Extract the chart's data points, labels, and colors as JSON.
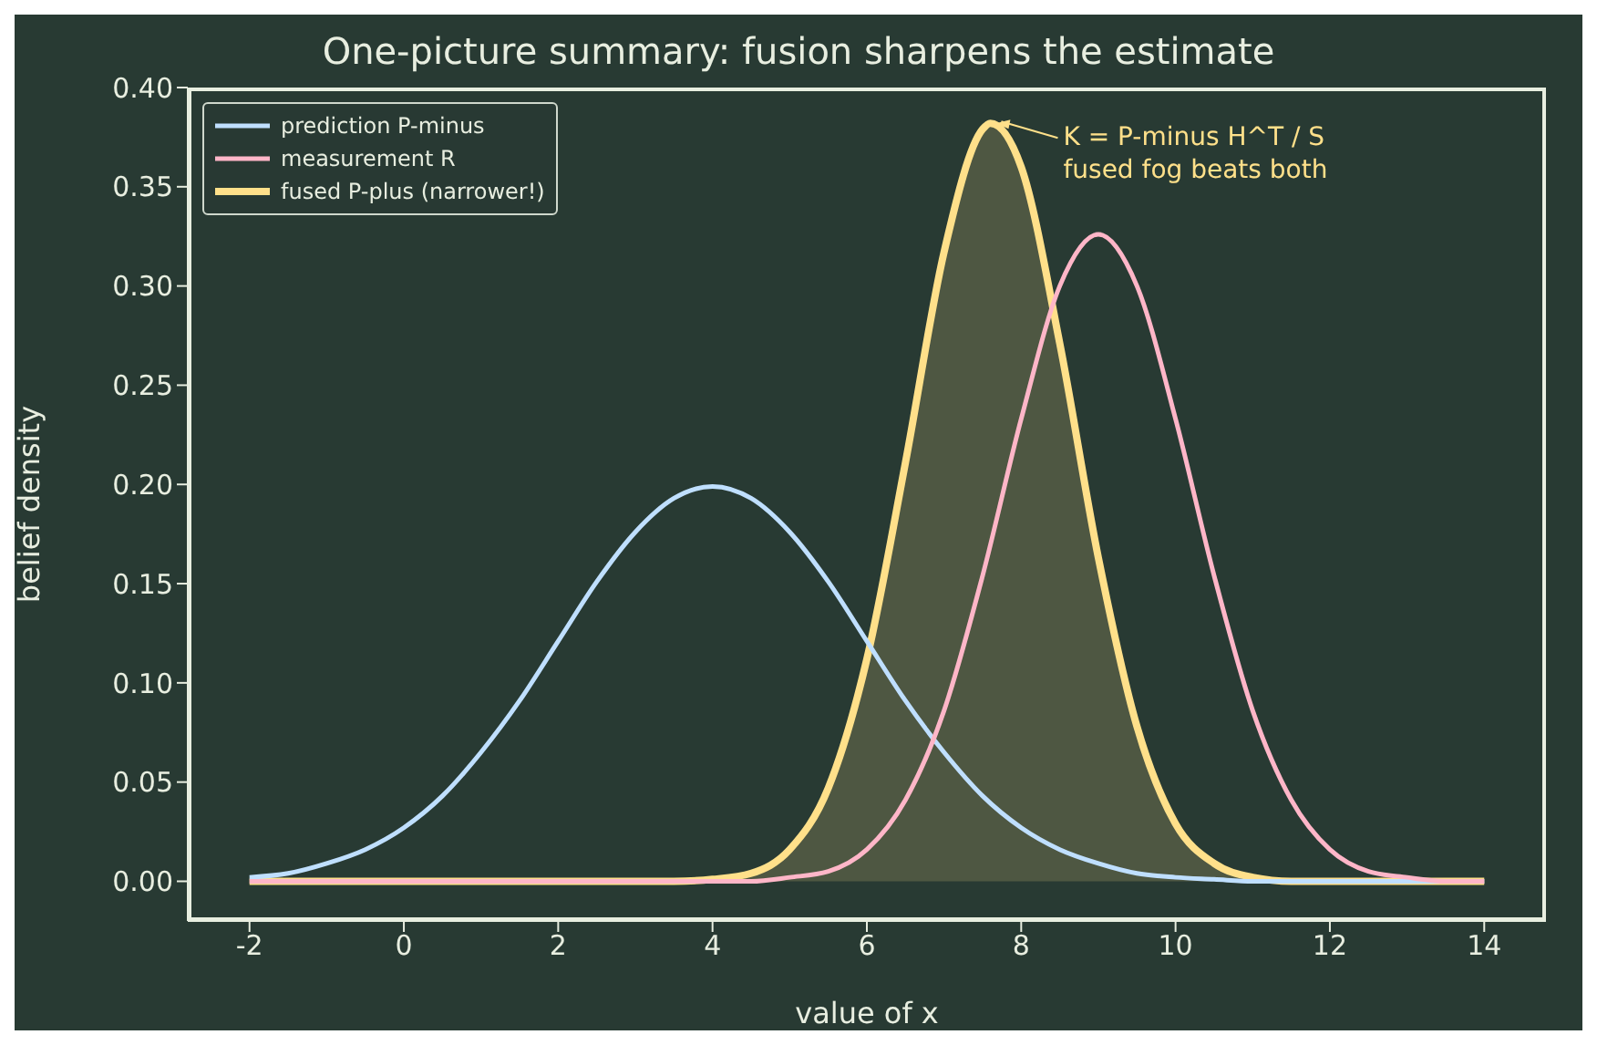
{
  "chart_data": {
    "type": "line",
    "title": "One-picture summary: fusion sharpens the estimate",
    "xlabel": "value of x",
    "ylabel": "belief density",
    "x": [
      -2,
      -1.5,
      -1,
      -0.5,
      0,
      0.5,
      1,
      1.5,
      2,
      2.5,
      3,
      3.5,
      4,
      4.5,
      5,
      5.5,
      6,
      6.5,
      7,
      7.5,
      8,
      8.5,
      9,
      9.5,
      10,
      10.5,
      11,
      11.5,
      12,
      12.5,
      13,
      13.5,
      14
    ],
    "series": [
      {
        "name": "prediction P-minus",
        "color": "#bfdfff",
        "values": [
          0.002,
          0.004,
          0.009,
          0.016,
          0.027,
          0.043,
          0.065,
          0.091,
          0.121,
          0.151,
          0.176,
          0.193,
          0.199,
          0.193,
          0.176,
          0.151,
          0.121,
          0.091,
          0.065,
          0.043,
          0.027,
          0.016,
          0.009,
          0.004,
          0.002,
          0.001,
          0,
          0,
          0,
          0,
          0,
          0,
          0
        ]
      },
      {
        "name": "measurement R",
        "color": "#ffb6c8",
        "values": [
          0,
          0,
          0,
          0,
          0,
          0,
          0,
          0,
          0,
          0,
          0,
          0,
          0,
          0,
          0.002,
          0.005,
          0.016,
          0.041,
          0.086,
          0.154,
          0.233,
          0.3,
          0.326,
          0.3,
          0.233,
          0.154,
          0.086,
          0.041,
          0.016,
          0.005,
          0.002,
          0,
          0
        ]
      },
      {
        "name": "fused P-plus (narrower!)",
        "color": "#ffe08a",
        "type": "area",
        "x": [
          -2,
          -1.5,
          -1,
          -0.5,
          0,
          0.5,
          1,
          1.5,
          2,
          2.5,
          3,
          3.5,
          4,
          4.5,
          5,
          5.5,
          6,
          6.5,
          7,
          7.5,
          7.6,
          8,
          8.5,
          9,
          9.5,
          10,
          10.5,
          11,
          11.5,
          12,
          12.5,
          13,
          13.5,
          14
        ],
        "values": [
          0,
          0,
          0,
          0,
          0,
          0,
          0,
          0,
          0,
          0,
          0,
          0,
          0.001,
          0.004,
          0.016,
          0.047,
          0.112,
          0.211,
          0.317,
          0.379,
          0.382,
          0.36,
          0.271,
          0.163,
          0.078,
          0.029,
          0.009,
          0.002,
          0,
          0,
          0,
          0,
          0,
          0
        ]
      }
    ],
    "xlim": [
      -2.8,
      14.8
    ],
    "xticks": [
      -2,
      0,
      2,
      4,
      6,
      8,
      10,
      12,
      14
    ],
    "ylim": [
      -0.02,
      0.4
    ],
    "yticks": [
      {
        "value": 0,
        "label": "0.00"
      },
      {
        "value": 0.05,
        "label": "0.05"
      },
      {
        "value": 0.1,
        "label": "0.10"
      },
      {
        "value": 0.15,
        "label": "0.15"
      },
      {
        "value": 0.2,
        "label": "0.20"
      },
      {
        "value": 0.25,
        "label": "0.25"
      },
      {
        "value": 0.3,
        "label": "0.30"
      },
      {
        "value": 0.35,
        "label": "0.35"
      },
      {
        "value": 0.4,
        "label": "0.40"
      }
    ],
    "annotations": [
      {
        "text": "K = P-minus H^T / S\nfused fog beats both",
        "x": 7.6,
        "y": 0.382
      }
    ],
    "legend": "top left",
    "grid": false,
    "marker": "none",
    "line_style": "solid"
  }
}
